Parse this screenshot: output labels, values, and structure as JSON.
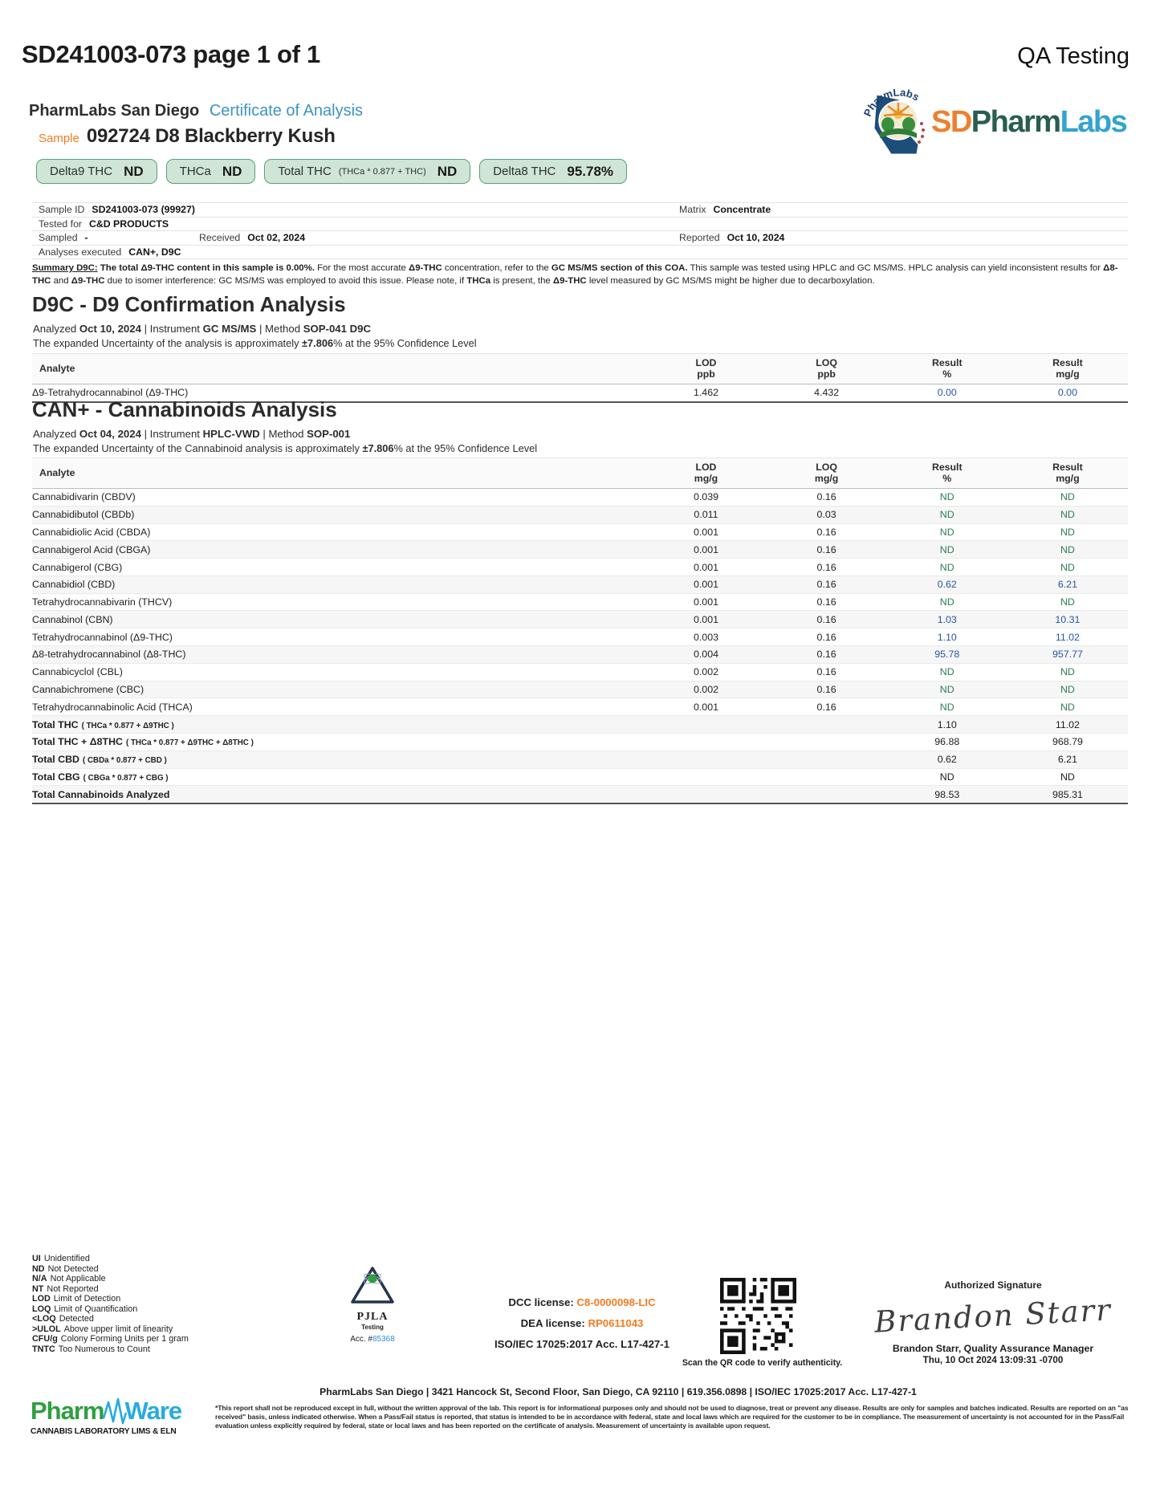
{
  "palette": {
    "accent_orange": "#f47b20",
    "certificate_blue": "#3d93c5",
    "result_value_blue": "#2456a6",
    "nd_green": "#2e7d54",
    "badge_green_bg": "#cfe5d6",
    "badge_green_border": "#58a07c",
    "logo_sd_orange": "#ef7f2e",
    "logo_pharm_teal": "#2a5d52",
    "logo_labs_blue": "#33a3d1",
    "pharmware_green": "#2f9e41",
    "pharmware_blue": "#29aae1",
    "link_blue": "#2f8fd0"
  },
  "page": {
    "doc_id_title": "SD241003-073 page 1 of 1",
    "qa_label": "QA Testing"
  },
  "header": {
    "lab_name": "PharmLabs San Diego",
    "coa_label": "Certificate of Analysis",
    "sample_label": "Sample",
    "sample_name": "092724 D8 Blackberry Kush",
    "logo": {
      "seal_arc_text": "PharmLabs",
      "sd": "SD",
      "pharm": "Pharm",
      "labs": "Labs"
    },
    "badges": [
      {
        "label": "Delta9 THC",
        "sub": "",
        "value": "ND"
      },
      {
        "label": "THCa",
        "sub": "",
        "value": "ND"
      },
      {
        "label": "Total THC",
        "sub": "(THCa * 0.877 + THC)",
        "value": "ND"
      },
      {
        "label": "Delta8 THC",
        "sub": "",
        "value": "95.78%"
      }
    ]
  },
  "sample_info": {
    "sample_id_label": "Sample ID",
    "sample_id": "SD241003-073 (99927)",
    "matrix_label": "Matrix",
    "matrix": "Concentrate",
    "tested_for_label": "Tested for",
    "tested_for": "C&D PRODUCTS",
    "sampled_label": "Sampled",
    "sampled": "-",
    "received_label": "Received",
    "received": "Oct 02, 2024",
    "reported_label": "Reported",
    "reported": "Oct 10, 2024",
    "analyses_label": "Analyses executed",
    "analyses": "CAN+, D9C"
  },
  "summary": {
    "segments": [
      {
        "t": "Summary D9C:",
        "b": 1,
        "u": 1
      },
      {
        "t": " "
      },
      {
        "t": "The total Δ9-THC content in this sample is 0.00%.",
        "b": 1
      },
      {
        "t": " For the most accurate "
      },
      {
        "t": "Δ9-THC",
        "b": 1
      },
      {
        "t": " concentration, refer to the "
      },
      {
        "t": "GC MS/MS section of this COA.",
        "b": 1
      },
      {
        "t": " This sample was tested using HPLC and GC MS/MS. HPLC analysis can yield inconsistent results for "
      },
      {
        "t": "Δ8-THC",
        "b": 1
      },
      {
        "t": " and "
      },
      {
        "t": "Δ9-THC",
        "b": 1
      },
      {
        "t": " due to isomer interference: GC MS/MS was employed to avoid this issue. Please note, if "
      },
      {
        "t": "THCa",
        "b": 1
      },
      {
        "t": " is present, the "
      },
      {
        "t": "Δ9-THC",
        "b": 1
      },
      {
        "t": " level measured by GC MS/MS might be higher due to decarboxylation."
      }
    ]
  },
  "d9c": {
    "title": "D9C - D9 Confirmation Analysis",
    "meta_segments": [
      {
        "t": "Analyzed "
      },
      {
        "t": "Oct 10, 2024",
        "b": 1
      },
      {
        "t": "  |  Instrument "
      },
      {
        "t": "GC MS/MS",
        "b": 1
      },
      {
        "t": " | Method "
      },
      {
        "t": "SOP-041 D9C",
        "b": 1
      }
    ],
    "uncertainty_segments": [
      {
        "t": "The expanded Uncertainty of the analysis is approximately "
      },
      {
        "t": "±7.806",
        "b": 1
      },
      {
        "t": "% at the 95% Confidence Level"
      }
    ],
    "columns": [
      {
        "l1": "Analyte",
        "l2": ""
      },
      {
        "l1": "LOD",
        "l2": "ppb"
      },
      {
        "l1": "LOQ",
        "l2": "ppb"
      },
      {
        "l1": "Result",
        "l2": "%"
      },
      {
        "l1": "Result",
        "l2": "mg/g"
      }
    ],
    "rows": [
      {
        "name": "Δ9-Tetrahydrocannabinol (Δ9-THC)",
        "formula": "",
        "lod": "1.462",
        "loq": "4.432",
        "pct": "0.00",
        "mgg": "0.00",
        "cls": "num"
      }
    ]
  },
  "can": {
    "title": "CAN+ - Cannabinoids Analysis",
    "meta_segments": [
      {
        "t": "Analyzed "
      },
      {
        "t": "Oct 04, 2024",
        "b": 1
      },
      {
        "t": "  |  Instrument "
      },
      {
        "t": "HPLC-VWD",
        "b": 1
      },
      {
        "t": " | Method "
      },
      {
        "t": "SOP-001",
        "b": 1
      }
    ],
    "uncertainty_segments": [
      {
        "t": "The expanded Uncertainty of the Cannabinoid analysis is approximately "
      },
      {
        "t": "±7.806",
        "b": 1
      },
      {
        "t": "% at the 95% Confidence Level"
      }
    ],
    "columns": [
      {
        "l1": "Analyte",
        "l2": ""
      },
      {
        "l1": "LOD",
        "l2": "mg/g"
      },
      {
        "l1": "LOQ",
        "l2": "mg/g"
      },
      {
        "l1": "Result",
        "l2": "%"
      },
      {
        "l1": "Result",
        "l2": "mg/g"
      }
    ],
    "rows": [
      {
        "name": "Cannabidivarin (CBDV)",
        "formula": "",
        "lod": "0.039",
        "loq": "0.16",
        "pct": "ND",
        "mgg": "ND",
        "cls": "nd"
      },
      {
        "name": "Cannabidibutol (CBDb)",
        "formula": "",
        "lod": "0.011",
        "loq": "0.03",
        "pct": "ND",
        "mgg": "ND",
        "cls": "nd"
      },
      {
        "name": "Cannabidiolic Acid (CBDA)",
        "formula": "",
        "lod": "0.001",
        "loq": "0.16",
        "pct": "ND",
        "mgg": "ND",
        "cls": "nd"
      },
      {
        "name": "Cannabigerol Acid (CBGA)",
        "formula": "",
        "lod": "0.001",
        "loq": "0.16",
        "pct": "ND",
        "mgg": "ND",
        "cls": "nd"
      },
      {
        "name": "Cannabigerol (CBG)",
        "formula": "",
        "lod": "0.001",
        "loq": "0.16",
        "pct": "ND",
        "mgg": "ND",
        "cls": "nd"
      },
      {
        "name": "Cannabidiol (CBD)",
        "formula": "",
        "lod": "0.001",
        "loq": "0.16",
        "pct": "0.62",
        "mgg": "6.21",
        "cls": "num"
      },
      {
        "name": "Tetrahydrocannabivarin (THCV)",
        "formula": "",
        "lod": "0.001",
        "loq": "0.16",
        "pct": "ND",
        "mgg": "ND",
        "cls": "nd"
      },
      {
        "name": "Cannabinol (CBN)",
        "formula": "",
        "lod": "0.001",
        "loq": "0.16",
        "pct": "1.03",
        "mgg": "10.31",
        "cls": "num"
      },
      {
        "name": "Tetrahydrocannabinol (Δ9-THC)",
        "formula": "",
        "lod": "0.003",
        "loq": "0.16",
        "pct": "1.10",
        "mgg": "11.02",
        "cls": "num"
      },
      {
        "name": "Δ8-tetrahydrocannabinol (Δ8-THC)",
        "formula": "",
        "lod": "0.004",
        "loq": "0.16",
        "pct": "95.78",
        "mgg": "957.77",
        "cls": "num"
      },
      {
        "name": "Cannabicyclol (CBL)",
        "formula": "",
        "lod": "0.002",
        "loq": "0.16",
        "pct": "ND",
        "mgg": "ND",
        "cls": "nd"
      },
      {
        "name": "Cannabichromene (CBC)",
        "formula": "",
        "lod": "0.002",
        "loq": "0.16",
        "pct": "ND",
        "mgg": "ND",
        "cls": "nd"
      },
      {
        "name": "Tetrahydrocannabinolic Acid (THCA)",
        "formula": "",
        "lod": "0.001",
        "loq": "0.16",
        "pct": "ND",
        "mgg": "ND",
        "cls": "nd"
      },
      {
        "name": "Total THC",
        "formula": "( THCa * 0.877 + Δ9THC )",
        "lod": "",
        "loq": "",
        "pct": "1.10",
        "mgg": "11.02",
        "cls": "total"
      },
      {
        "name": "Total THC + Δ8THC",
        "formula": "( THCa * 0.877 + Δ9THC + Δ8THC )",
        "lod": "",
        "loq": "",
        "pct": "96.88",
        "mgg": "968.79",
        "cls": "total"
      },
      {
        "name": "Total CBD",
        "formula": "( CBDa * 0.877 + CBD )",
        "lod": "",
        "loq": "",
        "pct": "0.62",
        "mgg": "6.21",
        "cls": "total"
      },
      {
        "name": "Total CBG",
        "formula": "( CBGa * 0.877 + CBG )",
        "lod": "",
        "loq": "",
        "pct": "ND",
        "mgg": "ND",
        "cls": "total"
      },
      {
        "name": "Total Cannabinoids Analyzed",
        "formula": "",
        "lod": "",
        "loq": "",
        "pct": "98.53",
        "mgg": "985.31",
        "cls": "total"
      }
    ]
  },
  "footer": {
    "legend": [
      {
        "abbr": "UI",
        "desc": "Unidentified"
      },
      {
        "abbr": "ND",
        "desc": "Not Detected"
      },
      {
        "abbr": "N/A",
        "desc": "Not Applicable"
      },
      {
        "abbr": "NT",
        "desc": "Not Reported"
      },
      {
        "abbr": "LOD",
        "desc": "Limit of Detection"
      },
      {
        "abbr": "LOQ",
        "desc": "Limit of Quantification"
      },
      {
        "abbr": "<LOQ",
        "desc": "Detected"
      },
      {
        "abbr": ">ULOL",
        "desc": "Above upper limit of linearity"
      },
      {
        "abbr": "CFU/g",
        "desc": "Colony Forming Units per 1 gram"
      },
      {
        "abbr": "TNTC",
        "desc": "Too Numerous to Count"
      }
    ],
    "pjla": {
      "name": "PJLA",
      "sub": "Testing",
      "acc_label": "Acc. #",
      "acc_value": "85368"
    },
    "licenses": {
      "dcc_label": "DCC license:",
      "dcc_value": "C8-0000098-LIC",
      "dea_label": "DEA license:",
      "dea_value": "RP0611043",
      "iso": "ISO/IEC 17025:2017 Acc. L17-427-1"
    },
    "qr_caption": "Scan the QR code to verify authenticity.",
    "signature": {
      "heading": "Authorized Signature",
      "script": "Brandon Starr",
      "name_title": "Brandon Starr, Quality Assurance Manager",
      "datetime": "Thu, 10 Oct 2024 13:09:31 -0700"
    },
    "address_line": "PharmLabs San Diego | 3421 Hancock St, Second Floor, San Diego, CA 92110 | 619.356.0898 | ISO/IEC 17025:2017 Acc. L17-427-1",
    "disclaimer": "*This report shall not be reproduced except in full, without the written approval of the lab. This report is for informational purposes only and should not be used to diagnose, treat or prevent any disease. Results are only for samples and batches indicated. Results are reported on an \"as received\" basis, unless indicated otherwise. When a Pass/Fail status is reported, that status is intended to be in accordance with federal, state and local laws which are required for the customer to be in compliance. The measurement of uncertainty is not accounted for in the Pass/Fail evaluation unless explicitly required by federal, state or local laws and has been reported on the certificate of analysis. Measurement of uncertainty is available upon request.",
    "pharmware": {
      "pharm": "Pharm",
      "ware": "Ware",
      "tagline": "CANNABIS LABORATORY LIMS & ELN"
    }
  }
}
